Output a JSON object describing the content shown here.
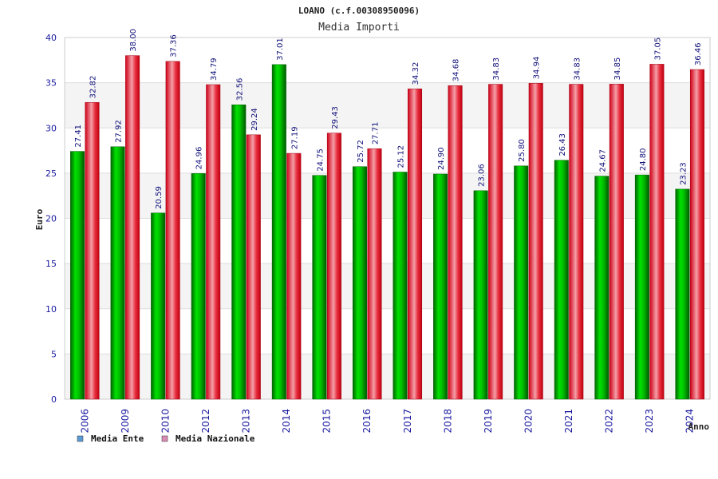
{
  "chart_data": {
    "type": "bar",
    "title": "LOANO (c.f.00308950096)",
    "subtitle": "Media Importi",
    "xlabel": "Anno",
    "ylabel": "Euro",
    "ylim": [
      0,
      40
    ],
    "yticks": [
      0,
      5,
      10,
      15,
      20,
      25,
      30,
      35,
      40
    ],
    "grid": true,
    "legend_position": "bottom-left",
    "categories": [
      "2006",
      "2009",
      "2010",
      "2012",
      "2013",
      "2014",
      "2015",
      "2016",
      "2017",
      "2018",
      "2019",
      "2020",
      "2021",
      "2022",
      "2023",
      "2024"
    ],
    "series": [
      {
        "name": "Media Ente",
        "color": "#00b400",
        "legend_color": "#5b9bd5",
        "values": [
          27.41,
          27.92,
          20.59,
          24.96,
          32.56,
          37.01,
          24.75,
          25.72,
          25.12,
          24.9,
          23.06,
          25.8,
          26.43,
          24.67,
          24.8,
          23.23
        ],
        "labels": [
          "27.41",
          "27.92",
          "20.59",
          "24.96",
          "32.56",
          "37.01",
          "24.75",
          "25.72",
          "25.12",
          "24.90",
          "23.06",
          "25.80",
          "26.43",
          "24.67",
          "24.80",
          "23.23"
        ]
      },
      {
        "name": "Media Nazionale",
        "color": "#e8001c",
        "legend_color": "#d98bb4",
        "values": [
          32.82,
          38.0,
          37.36,
          34.79,
          29.24,
          27.19,
          29.43,
          27.71,
          34.32,
          34.68,
          34.83,
          34.94,
          34.83,
          34.85,
          37.05,
          36.46
        ],
        "labels": [
          "32.82",
          "38.00",
          "37.36",
          "34.79",
          "29.24",
          "27.19",
          "29.43",
          "27.71",
          "34.32",
          "34.68",
          "34.83",
          "34.94",
          "34.83",
          "34.85",
          "37.05",
          "36.46"
        ]
      }
    ]
  }
}
